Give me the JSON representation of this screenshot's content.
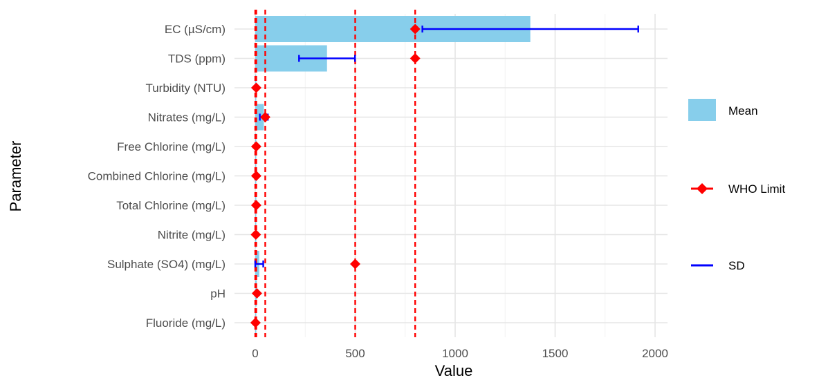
{
  "chart_data": {
    "type": "bar",
    "orientation": "horizontal",
    "xlabel": "Value",
    "ylabel": "Parameter",
    "xlim": [
      0,
      2000
    ],
    "x_ticks": [
      0,
      500,
      1000,
      1500,
      2000
    ],
    "grid": true,
    "legend_position": "right",
    "categories": [
      "EC (µS/cm)",
      "TDS (ppm)",
      "Turbidity (NTU)",
      "Nitrates (mg/L)",
      "Free Chlorine (mg/L)",
      "Combined Chlorine (mg/L)",
      "Total Chlorine (mg/L)",
      "Nitrite (mg/L)",
      "Sulphate (SO4) (mg/L)",
      "pH",
      "Fluoride (mg/L)"
    ],
    "series": [
      {
        "name": "Mean",
        "kind": "bar",
        "color": "#87ceeb",
        "values": [
          1376,
          359,
          2,
          43,
          1,
          1,
          1,
          1,
          20,
          7.5,
          0.5
        ]
      },
      {
        "name": "SD",
        "kind": "errorbar",
        "color": "#0000ff",
        "values": [
          540,
          140,
          1,
          20,
          0.5,
          0.5,
          0.5,
          0.5,
          20,
          0.5,
          0.2
        ]
      },
      {
        "name": "WHO Limit",
        "kind": "point",
        "color": "#ff0000",
        "values": [
          800,
          800,
          5,
          50,
          5,
          5,
          5,
          3,
          500,
          8.5,
          1.5
        ]
      }
    ],
    "reference_lines": {
      "color": "#ff0000",
      "style": "dashed",
      "values": [
        0,
        5,
        50,
        500,
        800
      ]
    }
  }
}
